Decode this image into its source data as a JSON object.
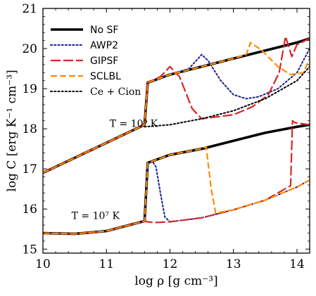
{
  "chart_data": {
    "type": "line",
    "xlabel": "log ρ  [g cm⁻³]",
    "ylabel": "log C  [erg K⁻¹ cm⁻³]",
    "xlim": [
      10,
      14.2
    ],
    "ylim": [
      14.9,
      21.0
    ],
    "xticks": [
      "10",
      "11",
      "12",
      "13",
      "14"
    ],
    "yticks": [
      "15",
      "16",
      "17",
      "18",
      "19",
      "20",
      "21"
    ],
    "legend_position": "top-left",
    "annotations": [
      {
        "text": "T = 10⁹ K"
      },
      {
        "text": "T = 10⁷ K"
      }
    ],
    "series": [
      {
        "name": "No SF",
        "group": "T=1e9",
        "color": "#000000",
        "style": "solid",
        "x": [
          10.0,
          11.6,
          11.65,
          12.0,
          12.5,
          13.0,
          13.5,
          14.0,
          14.2
        ],
        "y": [
          16.9,
          18.1,
          19.15,
          19.35,
          19.55,
          19.75,
          19.95,
          20.15,
          20.25
        ]
      },
      {
        "name": "AWP2",
        "group": "T=1e9",
        "color": "#1a1f8f",
        "style": "dotted",
        "x": [
          10.0,
          11.6,
          11.65,
          12.0,
          12.3,
          12.5,
          12.6,
          12.8,
          13.0,
          13.2,
          13.4,
          13.7,
          14.0,
          14.2
        ],
        "y": [
          16.9,
          18.1,
          19.15,
          19.35,
          19.5,
          19.85,
          19.7,
          19.2,
          18.85,
          18.75,
          18.8,
          19.0,
          19.4,
          20.0
        ]
      },
      {
        "name": "GIPSF",
        "group": "T=1e9",
        "color": "#d62728",
        "style": "dashed",
        "x": [
          10.0,
          11.6,
          11.65,
          11.85,
          12.0,
          12.15,
          12.35,
          12.5,
          13.0,
          13.3,
          13.55,
          13.72,
          13.82,
          13.92,
          14.0,
          14.2
        ],
        "y": [
          16.9,
          18.1,
          19.15,
          19.3,
          19.55,
          19.3,
          18.5,
          18.25,
          18.35,
          18.55,
          18.85,
          19.4,
          20.3,
          19.8,
          20.1,
          20.25
        ]
      },
      {
        "name": "SCLBL",
        "group": "T=1e9",
        "color": "#ff8c00",
        "style": "dashed",
        "x": [
          10.0,
          11.6,
          11.65,
          12.0,
          12.5,
          13.0,
          13.2,
          13.27,
          13.45,
          13.7,
          13.9,
          14.1,
          14.2
        ],
        "y": [
          16.9,
          18.1,
          19.15,
          19.35,
          19.55,
          19.75,
          19.85,
          20.15,
          19.95,
          19.55,
          19.35,
          19.4,
          19.75
        ]
      },
      {
        "name": "Ce + Cion",
        "group": "T=1e9",
        "color": "#000000",
        "style": "dotted",
        "x": [
          11.6,
          12.0,
          12.5,
          13.0,
          13.5,
          14.0,
          14.2
        ],
        "y": [
          18.05,
          18.1,
          18.25,
          18.45,
          18.75,
          19.2,
          19.55
        ]
      },
      {
        "name": "No SF",
        "group": "T=1e7",
        "color": "#000000",
        "style": "solid",
        "x": [
          10.0,
          10.5,
          11.0,
          11.6,
          11.65,
          12.0,
          12.5,
          13.0,
          13.5,
          14.0,
          14.2
        ],
        "y": [
          15.4,
          15.38,
          15.45,
          15.7,
          17.15,
          17.35,
          17.5,
          17.7,
          17.9,
          18.05,
          18.1
        ]
      },
      {
        "name": "AWP2",
        "group": "T=1e7",
        "color": "#1a1f8f",
        "style": "dotted",
        "x": [
          10.0,
          10.5,
          11.0,
          11.6,
          11.65,
          11.72,
          11.78,
          11.85,
          11.92,
          12.0,
          12.5,
          13.0,
          13.5,
          14.0,
          14.2
        ],
        "y": [
          15.4,
          15.38,
          15.45,
          15.7,
          17.15,
          17.2,
          17.05,
          16.4,
          15.8,
          15.68,
          15.78,
          15.98,
          16.22,
          16.55,
          16.72
        ]
      },
      {
        "name": "GIPSF",
        "group": "T=1e7",
        "color": "#d62728",
        "style": "dashed",
        "x": [
          10.0,
          10.5,
          11.0,
          11.6,
          11.65,
          11.75,
          12.0,
          12.5,
          13.0,
          13.5,
          13.9,
          13.93,
          13.97,
          14.2
        ],
        "y": [
          15.4,
          15.38,
          15.45,
          15.7,
          15.68,
          15.66,
          15.68,
          15.78,
          15.98,
          16.22,
          16.58,
          18.2,
          18.15,
          18.1
        ]
      },
      {
        "name": "SCLBL",
        "group": "T=1e7",
        "color": "#ff8c00",
        "style": "dashed",
        "x": [
          10.0,
          10.5,
          11.0,
          11.6,
          11.65,
          12.0,
          12.5,
          12.57,
          12.65,
          12.72,
          13.0,
          13.5,
          14.0,
          14.2
        ],
        "y": [
          15.4,
          15.38,
          15.45,
          15.7,
          17.15,
          17.35,
          17.5,
          17.55,
          16.5,
          15.9,
          15.98,
          16.22,
          16.55,
          16.72
        ]
      }
    ]
  }
}
